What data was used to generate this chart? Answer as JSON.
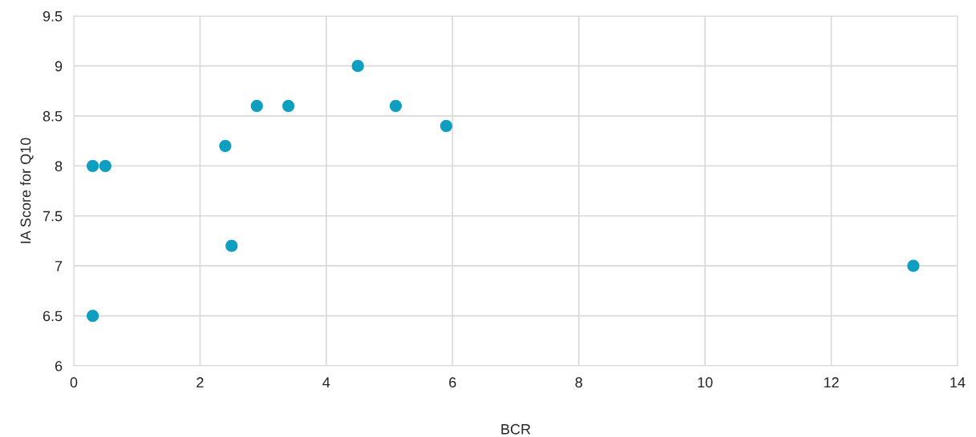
{
  "chart_data": {
    "type": "scatter",
    "xlabel": "BCR",
    "ylabel": "IA Score for Q10",
    "x": [
      0.3,
      0.5,
      0.3,
      2.4,
      2.5,
      2.9,
      3.4,
      4.5,
      5.1,
      5.9,
      13.3
    ],
    "values": [
      8.0,
      8.0,
      6.5,
      8.2,
      7.2,
      8.6,
      8.6,
      9.0,
      8.6,
      8.4,
      7.0
    ],
    "color": "#0e9fc0",
    "marker": "circle",
    "xlim": [
      0,
      14
    ],
    "xticks": [
      0,
      2,
      4,
      6,
      8,
      10,
      12,
      14
    ],
    "ylim": [
      6,
      9.5
    ],
    "yticks": [
      6,
      {
        "value": 6.5,
        "label": "6.5"
      },
      7,
      {
        "value": 7.5,
        "label": "7.5"
      },
      8,
      {
        "value": 8.5,
        "label": "8.5"
      },
      9,
      {
        "value": 9.5,
        "label": "9.5"
      }
    ],
    "grid": true,
    "legend": false
  }
}
